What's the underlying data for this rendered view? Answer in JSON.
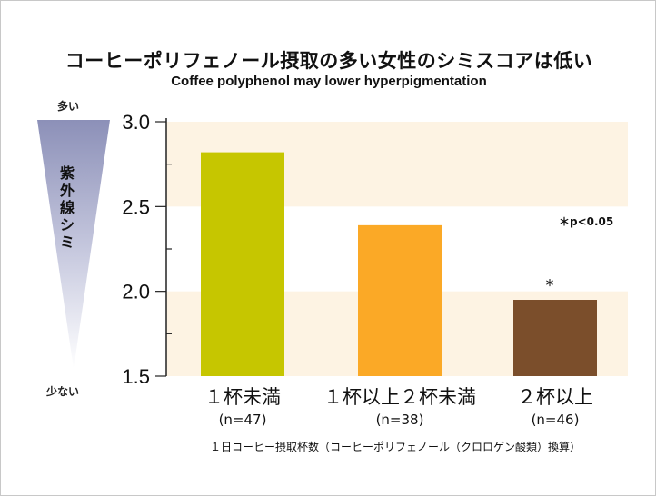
{
  "chart_data": {
    "type": "bar",
    "title": "コーヒーポリフェノール摂取の多い女性のシミスコアは低い",
    "subtitle": "Coffee polyphenol may lower hyperpigmentation",
    "categories": [
      "１杯未満",
      "１杯以上２杯未満",
      "２杯以上"
    ],
    "sample_sizes": [
      "(n=47)",
      "(n=38)",
      "(n=46)"
    ],
    "values": [
      2.82,
      2.39,
      1.95
    ],
    "colors": [
      "#c6c600",
      "#fba926",
      "#7b4e2b"
    ],
    "significance": [
      "",
      "",
      "*"
    ],
    "significance_note": "＊p<0.05",
    "ylim": [
      1.5,
      3.0
    ],
    "yticks": [
      "1.5",
      "2.0",
      "2.5",
      "3.0"
    ],
    "ylabel": "紫外線シミ",
    "ylabel_top": "多い",
    "ylabel_bottom": "少ない",
    "xlabel": "１日コーヒー摂取杯数（コーヒーポリフェノール（クロロゲン酸類）換算）",
    "band_color": "#fdf3e3",
    "grid": false
  }
}
